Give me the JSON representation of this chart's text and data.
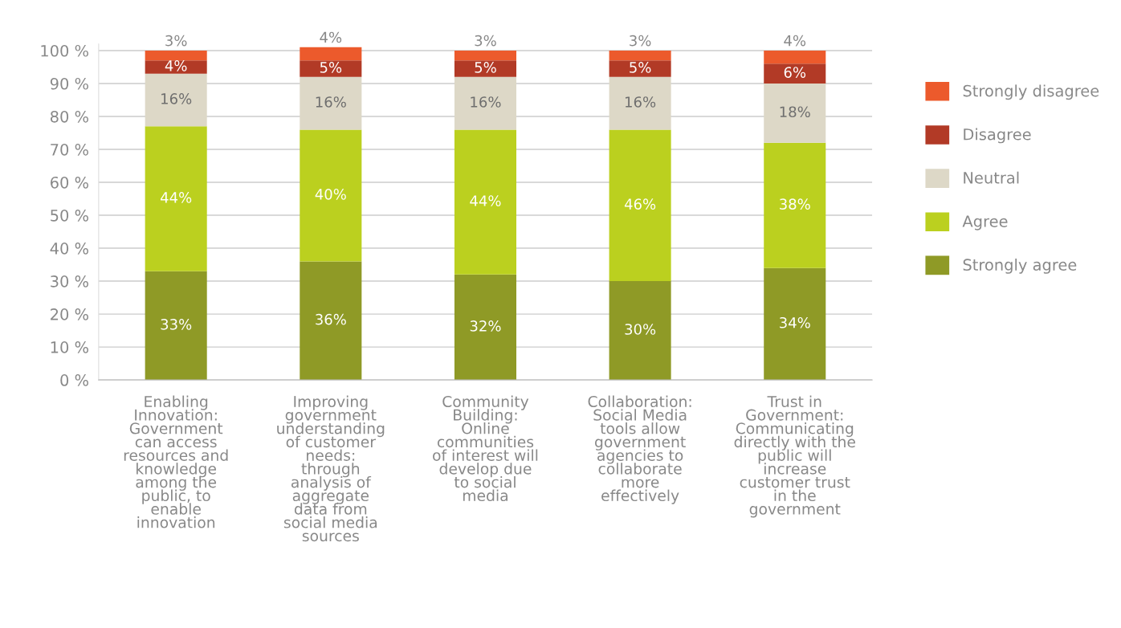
{
  "chart_data": {
    "type": "bar",
    "stacked": true,
    "categories": [
      "Enabling\nInnovation:\nGovernment\ncan access\nresources and\nknowledge\namong the\npublic, to\nenable\ninnovation",
      "Improving\ngovernment\nunderstanding\nof customer\nneeds:\nthrough\nanalysis of\naggregate\ndata from\nsocial media\nsources",
      "Community\nBuilding:\nOnline\ncommunities\nof interest will\ndevelop due\nto social\nmedia",
      "Collaboration:\nSocial Media\ntools allow\ngovernment\nagencies to\ncollaborate\nmore\neffectively",
      "Trust in\nGovernment:\nCommunicating\ndirectly with the\npublic will\nincrease\ncustomer trust\nin the\ngovernment"
    ],
    "series": [
      {
        "name": "Strongly agree",
        "color": "#8f9a26",
        "values": [
          33,
          36,
          32,
          30,
          34
        ],
        "value_labels": [
          "33%",
          "36%",
          "32%",
          "30%",
          "34%"
        ]
      },
      {
        "name": "Agree",
        "color": "#bbd01f",
        "values": [
          44,
          40,
          44,
          46,
          38
        ],
        "value_labels": [
          "44%",
          "40%",
          "44%",
          "46%",
          "38%"
        ]
      },
      {
        "name": "Neutral",
        "color": "#ddd8c7",
        "values": [
          16,
          16,
          16,
          16,
          18
        ],
        "value_labels": [
          "16%",
          "16%",
          "16%",
          "16%",
          "18%"
        ]
      },
      {
        "name": "Disagree",
        "color": "#b23a26",
        "values": [
          4,
          5,
          5,
          5,
          6
        ],
        "value_labels": [
          "4%",
          "5%",
          "5%",
          "5%",
          "6%"
        ]
      },
      {
        "name": "Strongly disagree",
        "color": "#ec5a2c",
        "values": [
          3,
          4,
          3,
          3,
          4
        ],
        "value_labels": [
          "3%",
          "4%",
          "3%",
          "3%",
          "4%"
        ]
      }
    ],
    "ylim": [
      0,
      102
    ],
    "yticks": [
      {
        "value": 0,
        "label": "0 %"
      },
      {
        "value": 10,
        "label": "10 %"
      },
      {
        "value": 20,
        "label": "20 %"
      },
      {
        "value": 30,
        "label": "30 %"
      },
      {
        "value": 40,
        "label": "40 %"
      },
      {
        "value": 50,
        "label": "50 %"
      },
      {
        "value": 60,
        "label": "60 %"
      },
      {
        "value": 70,
        "label": "70 %"
      },
      {
        "value": 80,
        "label": "80 %"
      },
      {
        "value": 90,
        "label": "90 %"
      },
      {
        "value": 100,
        "label": "100 %"
      }
    ],
    "grid": "y",
    "legend": "right"
  }
}
